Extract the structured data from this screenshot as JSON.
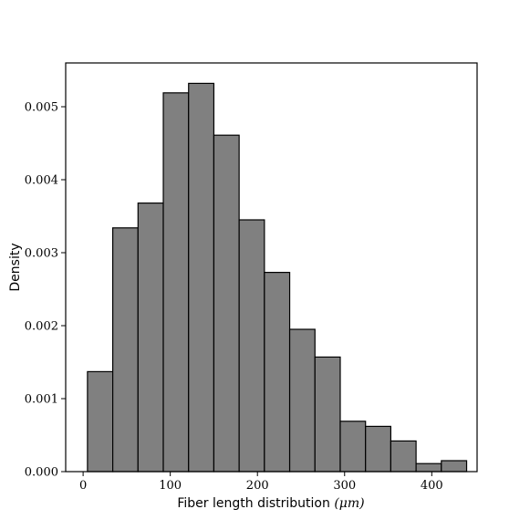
{
  "chart_data": {
    "type": "histogram",
    "title": "",
    "xlabel": "Fiber length distribution",
    "xlabel_unit": "(μm)",
    "ylabel": "Density",
    "xlim": [
      -20,
      452
    ],
    "ylim": [
      0,
      0.0056
    ],
    "x_ticks": [
      0,
      100,
      200,
      300,
      400
    ],
    "x_tick_labels": [
      "0",
      "100",
      "200",
      "300",
      "400"
    ],
    "y_ticks": [
      0,
      0.001,
      0.002,
      0.003,
      0.004,
      0.005
    ],
    "y_tick_labels": [
      "0.000",
      "0.001",
      "0.002",
      "0.003",
      "0.004",
      "0.005"
    ],
    "bar_color": "#808080",
    "edge_color": "#000000",
    "bins": [
      {
        "x0": 5,
        "x1": 34,
        "density": 0.00137
      },
      {
        "x0": 34,
        "x1": 63,
        "density": 0.00334
      },
      {
        "x0": 63,
        "x1": 92,
        "density": 0.00368
      },
      {
        "x0": 92,
        "x1": 121,
        "density": 0.00519
      },
      {
        "x0": 121,
        "x1": 150,
        "density": 0.00532
      },
      {
        "x0": 150,
        "x1": 179,
        "density": 0.00461
      },
      {
        "x0": 179,
        "x1": 208,
        "density": 0.00345
      },
      {
        "x0": 208,
        "x1": 237,
        "density": 0.00273
      },
      {
        "x0": 237,
        "x1": 266,
        "density": 0.00195
      },
      {
        "x0": 266,
        "x1": 295,
        "density": 0.00157
      },
      {
        "x0": 295,
        "x1": 324,
        "density": 0.00069
      },
      {
        "x0": 324,
        "x1": 353,
        "density": 0.00062
      },
      {
        "x0": 353,
        "x1": 382,
        "density": 0.00042
      },
      {
        "x0": 382,
        "x1": 411,
        "density": 0.00011
      },
      {
        "x0": 411,
        "x1": 440,
        "density": 0.00015
      }
    ]
  }
}
